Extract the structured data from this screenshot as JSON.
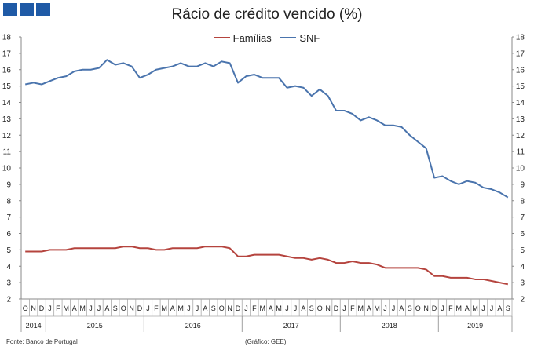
{
  "title": "Rácio de crédito vencido (%)",
  "legend": [
    {
      "label": "Famílias",
      "color": "#b5443e"
    },
    {
      "label": "SNF",
      "color": "#4a74ad"
    }
  ],
  "logo_color": "#1f5aa6",
  "footer": {
    "source": "Fonte: Banco de Portugal",
    "credit": "(Gráfico: GEE)"
  },
  "chart_data": {
    "type": "line",
    "ylim": [
      2,
      18
    ],
    "yticks": [
      "2",
      "3",
      "4",
      "5",
      "6",
      "7",
      "8",
      "9",
      "10",
      "11",
      "12",
      "13",
      "14",
      "15",
      "16",
      "17",
      "18"
    ],
    "months": [
      "O",
      "N",
      "D",
      "J",
      "F",
      "M",
      "A",
      "M",
      "J",
      "J",
      "A",
      "S",
      "O",
      "N",
      "D",
      "J",
      "F",
      "M",
      "A",
      "M",
      "J",
      "J",
      "A",
      "S",
      "O",
      "N",
      "D",
      "J",
      "F",
      "M",
      "A",
      "M",
      "J",
      "J",
      "A",
      "S",
      "O",
      "N",
      "D",
      "J",
      "F",
      "M",
      "A",
      "M",
      "J",
      "J",
      "A",
      "S",
      "O",
      "N",
      "D",
      "J",
      "F",
      "M",
      "A",
      "M",
      "J",
      "J",
      "A",
      "S"
    ],
    "years": [
      {
        "label": "2014",
        "start": 0,
        "end": 3
      },
      {
        "label": "2015",
        "start": 3,
        "end": 15
      },
      {
        "label": "2016",
        "start": 15,
        "end": 27
      },
      {
        "label": "2017",
        "start": 27,
        "end": 39
      },
      {
        "label": "2018",
        "start": 39,
        "end": 51
      },
      {
        "label": "2019",
        "start": 51,
        "end": 60
      }
    ],
    "series": [
      {
        "name": "Famílias",
        "color": "#b5443e",
        "values": [
          4.9,
          4.9,
          4.9,
          5.0,
          5.0,
          5.0,
          5.1,
          5.1,
          5.1,
          5.1,
          5.1,
          5.1,
          5.2,
          5.2,
          5.1,
          5.1,
          5.0,
          5.0,
          5.1,
          5.1,
          5.1,
          5.1,
          5.2,
          5.2,
          5.2,
          5.1,
          4.6,
          4.6,
          4.7,
          4.7,
          4.7,
          4.7,
          4.6,
          4.5,
          4.5,
          4.4,
          4.5,
          4.4,
          4.2,
          4.2,
          4.3,
          4.2,
          4.2,
          4.1,
          3.9,
          3.9,
          3.9,
          3.9,
          3.9,
          3.8,
          3.4,
          3.4,
          3.3,
          3.3,
          3.3,
          3.2,
          3.2,
          3.1,
          3.0,
          2.9
        ]
      },
      {
        "name": "SNF",
        "color": "#4a74ad",
        "values": [
          15.1,
          15.2,
          15.1,
          15.3,
          15.5,
          15.6,
          15.9,
          16.0,
          16.0,
          16.1,
          16.6,
          16.3,
          16.4,
          16.2,
          15.5,
          15.7,
          16.0,
          16.1,
          16.2,
          16.4,
          16.2,
          16.2,
          16.4,
          16.2,
          16.5,
          16.4,
          15.2,
          15.6,
          15.7,
          15.5,
          15.5,
          15.5,
          14.9,
          15.0,
          14.9,
          14.4,
          14.8,
          14.4,
          13.5,
          13.5,
          13.3,
          12.9,
          13.1,
          12.9,
          12.6,
          12.6,
          12.5,
          12.0,
          11.6,
          11.2,
          9.4,
          9.5,
          9.2,
          9.0,
          9.2,
          9.1,
          8.8,
          8.7,
          8.5,
          8.2
        ]
      }
    ]
  }
}
